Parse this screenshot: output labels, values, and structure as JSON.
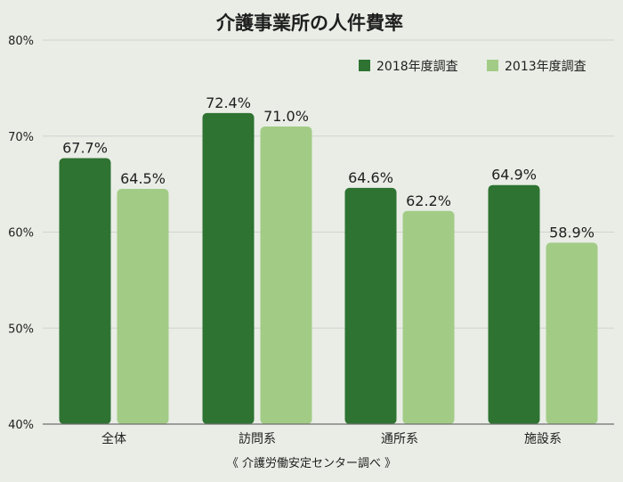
{
  "chart_data": {
    "type": "bar",
    "title": "介護事業所の人件費率",
    "categories": [
      "全体",
      "訪問系",
      "通所系",
      "施設系"
    ],
    "series": [
      {
        "name": "2018年度調査",
        "values": [
          67.7,
          72.4,
          64.6,
          64.9
        ],
        "color": "#2e7331"
      },
      {
        "name": "2013年度調査",
        "values": [
          64.5,
          71.0,
          62.2,
          58.9
        ],
        "color": "#a2cc86"
      }
    ],
    "data_labels": [
      [
        "67.7%",
        "72.4%",
        "64.6%",
        "64.9%"
      ],
      [
        "64.5%",
        "71.0%",
        "62.2%",
        "58.9%"
      ]
    ],
    "ylim": [
      40,
      80
    ],
    "yticks": [
      40,
      50,
      60,
      70,
      80
    ],
    "ytick_labels": [
      "40%",
      "50%",
      "60%",
      "70%",
      "80%"
    ],
    "xlabel": "",
    "ylabel": "",
    "legend_position": "top-right",
    "grid": true,
    "source_note": "《 介護労働安定センター調べ 》",
    "colors": {
      "background": "#e9ede6",
      "grid": "#cfd4cb",
      "axis": "#6f6f6f",
      "text": "#1f1f1f"
    }
  }
}
